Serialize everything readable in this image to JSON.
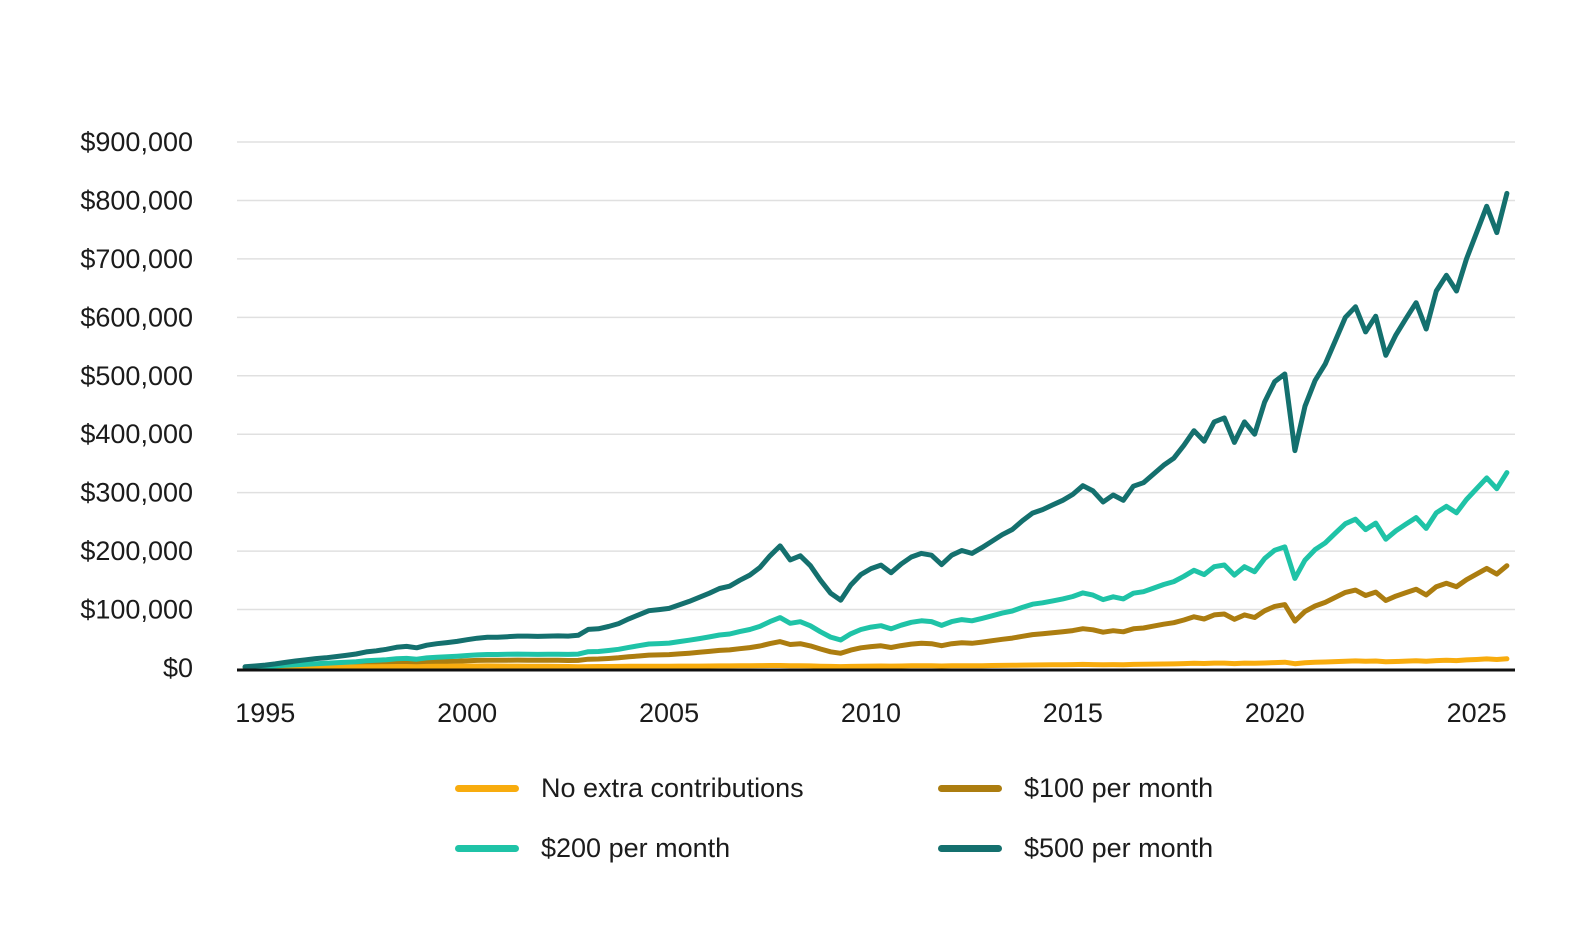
{
  "chart_data": {
    "type": "line",
    "title": "",
    "xlabel": "",
    "ylabel": "",
    "grid": "horizontal",
    "legend_position": "bottom",
    "ylim": [
      0,
      900000
    ],
    "y_tick_values": [
      0,
      100000,
      200000,
      300000,
      400000,
      500000,
      600000,
      700000,
      800000,
      900000
    ],
    "y_tick_labels": [
      "$0",
      "$100,000",
      "$200,000",
      "$300,000",
      "$400,000",
      "$500,000",
      "$600,000",
      "$700,000",
      "$800,000",
      "$900,000"
    ],
    "x_tick_values": [
      1995,
      2000,
      2005,
      2010,
      2015,
      2020,
      2025
    ],
    "x_tick_labels": [
      "1995",
      "2000",
      "2005",
      "2010",
      "2015",
      "2020",
      "2025"
    ],
    "x_start": 1994.5,
    "x_step": 0.25,
    "x_unit": "year (quarterly points)",
    "y_unit": "USD",
    "colors": {
      "no_extra": "#F8AC0E",
      "per_100": "#AC7D10",
      "per_200": "#1FC3A7",
      "per_500": "#14706E",
      "gridline": "#e0e0e0",
      "axis": "#101010",
      "text": "#1b1b1b"
    },
    "series": [
      {
        "name": "No extra contributions",
        "color": "#F8AC0E",
        "values": [
          1000,
          1050,
          1100,
          1200,
          1300,
          1400,
          1500,
          1580,
          1650,
          1730,
          1800,
          1950,
          2100,
          2250,
          2400,
          2550,
          2600,
          2200,
          2700,
          2900,
          3000,
          3200,
          3400,
          3500,
          3550,
          3500,
          3300,
          3200,
          3100,
          2900,
          2950,
          2800,
          2500,
          2200,
          2350,
          2500,
          2650,
          2750,
          2850,
          2900,
          3000,
          3050,
          3100,
          3200,
          3250,
          3300,
          3450,
          3550,
          3650,
          3800,
          3900,
          4100,
          4250,
          4300,
          4000,
          4000,
          3550,
          3100,
          2700,
          2400,
          2800,
          3100,
          3300,
          3400,
          3200,
          3500,
          3700,
          3800,
          3700,
          3400,
          3750,
          3900,
          3850,
          4000,
          4200,
          4450,
          4650,
          4900,
          5200,
          5300,
          5450,
          5600,
          5800,
          6100,
          5900,
          5600,
          5800,
          5700,
          6100,
          6300,
          6600,
          6900,
          7100,
          7500,
          8000,
          7700,
          8300,
          8400,
          7600,
          8300,
          8000,
          8600,
          9200,
          9900,
          7400,
          9000,
          9700,
          10200,
          11000,
          11600,
          12200,
          11400,
          11900,
          10600,
          11200,
          11800,
          12300,
          11400,
          12700,
          13200,
          12700,
          13800,
          14600,
          15500,
          14600,
          15800
        ]
      },
      {
        "name": "$100 per month",
        "color": "#AC7D10",
        "values": [
          1200,
          1540,
          1880,
          2360,
          2940,
          3520,
          4000,
          4460,
          4820,
          5280,
          5740,
          6360,
          7180,
          7700,
          8320,
          9140,
          9480,
          8660,
          9960,
          10620,
          11100,
          11660,
          12420,
          13000,
          13340,
          13300,
          13340,
          13460,
          13380,
          13120,
          13260,
          13240,
          12900,
          12960,
          15080,
          15400,
          16320,
          17400,
          19080,
          20520,
          22000,
          22440,
          22880,
          24160,
          25400,
          26840,
          28360,
          30040,
          30920,
          33040,
          34920,
          37680,
          41800,
          45240,
          40200,
          41600,
          37840,
          32480,
          27760,
          25120,
          30640,
          34480,
          36640,
          37920,
          35160,
          38400,
          40960,
          42240,
          41560,
          38120,
          41600,
          43320,
          42280,
          44400,
          46760,
          49160,
          51120,
          54320,
          57160,
          58440,
          60160,
          61880,
          64040,
          67280,
          65320,
          61280,
          63840,
          61960,
          67080,
          68440,
          71680,
          74920,
          77480,
          82200,
          87600,
          83760,
          90840,
          92320,
          83280,
          90840,
          86400,
          97880,
          105360,
          108520,
          80320,
          96800,
          106160,
          112160,
          120800,
          129280,
          133360,
          124120,
          129920,
          115480,
          122960,
          129040,
          134840,
          125120,
          139160,
          144960,
          139160,
          151040,
          160680,
          170400,
          160680,
          175040
        ]
      },
      {
        "name": "$200 per month",
        "color": "#1FC3A7",
        "values": [
          1400,
          2030,
          2660,
          3520,
          4580,
          5640,
          6500,
          7340,
          7990,
          8830,
          9680,
          10770,
          12260,
          13150,
          14240,
          15730,
          16360,
          15120,
          17220,
          18340,
          19200,
          20120,
          21440,
          22500,
          23130,
          23100,
          23380,
          23720,
          23660,
          23340,
          23570,
          23680,
          23300,
          23720,
          27810,
          28300,
          29990,
          32050,
          35310,
          38140,
          41000,
          41830,
          42660,
          45120,
          47550,
          50380,
          53270,
          56530,
          58190,
          62280,
          65940,
          71260,
          79350,
          86180,
          76400,
          79200,
          72130,
          61860,
          52820,
          47840,
          58480,
          65860,
          69980,
          72440,
          67120,
          73300,
          78220,
          80680,
          79420,
          72840,
          79450,
          82740,
          80710,
          84800,
          89320,
          93870,
          97590,
          103740,
          109120,
          111580,
          114870,
          118160,
          122280,
          128460,
          124740,
          116960,
          121880,
          118220,
          128060,
          130580,
          136760,
          142940,
          147860,
          156900,
          167200,
          159820,
          173380,
          176240,
          158960,
          173380,
          164800,
          187160,
          201520,
          207140,
          153240,
          184600,
          202620,
          214120,
          230600,
          246960,
          254520,
          236840,
          247940,
          220360,
          234720,
          246280,
          257380,
          238840,
          265620,
          276720,
          265620,
          288280,
          306760,
          325300,
          306760,
          334280
        ]
      },
      {
        "name": "$500 per month",
        "color": "#14706E",
        "values": [
          2000,
          3500,
          5000,
          7000,
          9500,
          12000,
          14000,
          16000,
          17500,
          19500,
          21500,
          24000,
          27500,
          29500,
          32000,
          35500,
          37000,
          34500,
          39000,
          41500,
          43500,
          45500,
          48500,
          51000,
          52500,
          52500,
          53500,
          54500,
          54500,
          54000,
          54500,
          55000,
          54500,
          56000,
          66000,
          67000,
          71000,
          76000,
          84000,
          91000,
          98000,
          100000,
          102000,
          108000,
          114000,
          121000,
          128000,
          136000,
          140000,
          150000,
          159000,
          172000,
          192000,
          209000,
          185000,
          192000,
          175000,
          150000,
          128000,
          116000,
          142000,
          160000,
          170000,
          176000,
          163000,
          178000,
          190000,
          196000,
          193000,
          177000,
          193000,
          201000,
          196000,
          206000,
          217000,
          228000,
          237000,
          252000,
          265000,
          271000,
          279000,
          287000,
          297000,
          312000,
          303000,
          284000,
          296000,
          287000,
          311000,
          317000,
          332000,
          347000,
          359000,
          381000,
          406000,
          388000,
          421000,
          428000,
          386000,
          421000,
          400000,
          455000,
          490000,
          503000,
          372000,
          448000,
          492000,
          520000,
          560000,
          600000,
          618000,
          575000,
          602000,
          535000,
          570000,
          598000,
          625000,
          580000,
          645000,
          672000,
          645000,
          700000,
          745000,
          790000,
          745000,
          812000
        ]
      }
    ]
  },
  "legend": {
    "items": [
      {
        "label": "No extra contributions"
      },
      {
        "label": "$100 per month"
      },
      {
        "label": "$200 per month"
      },
      {
        "label": "$500 per month"
      }
    ]
  }
}
